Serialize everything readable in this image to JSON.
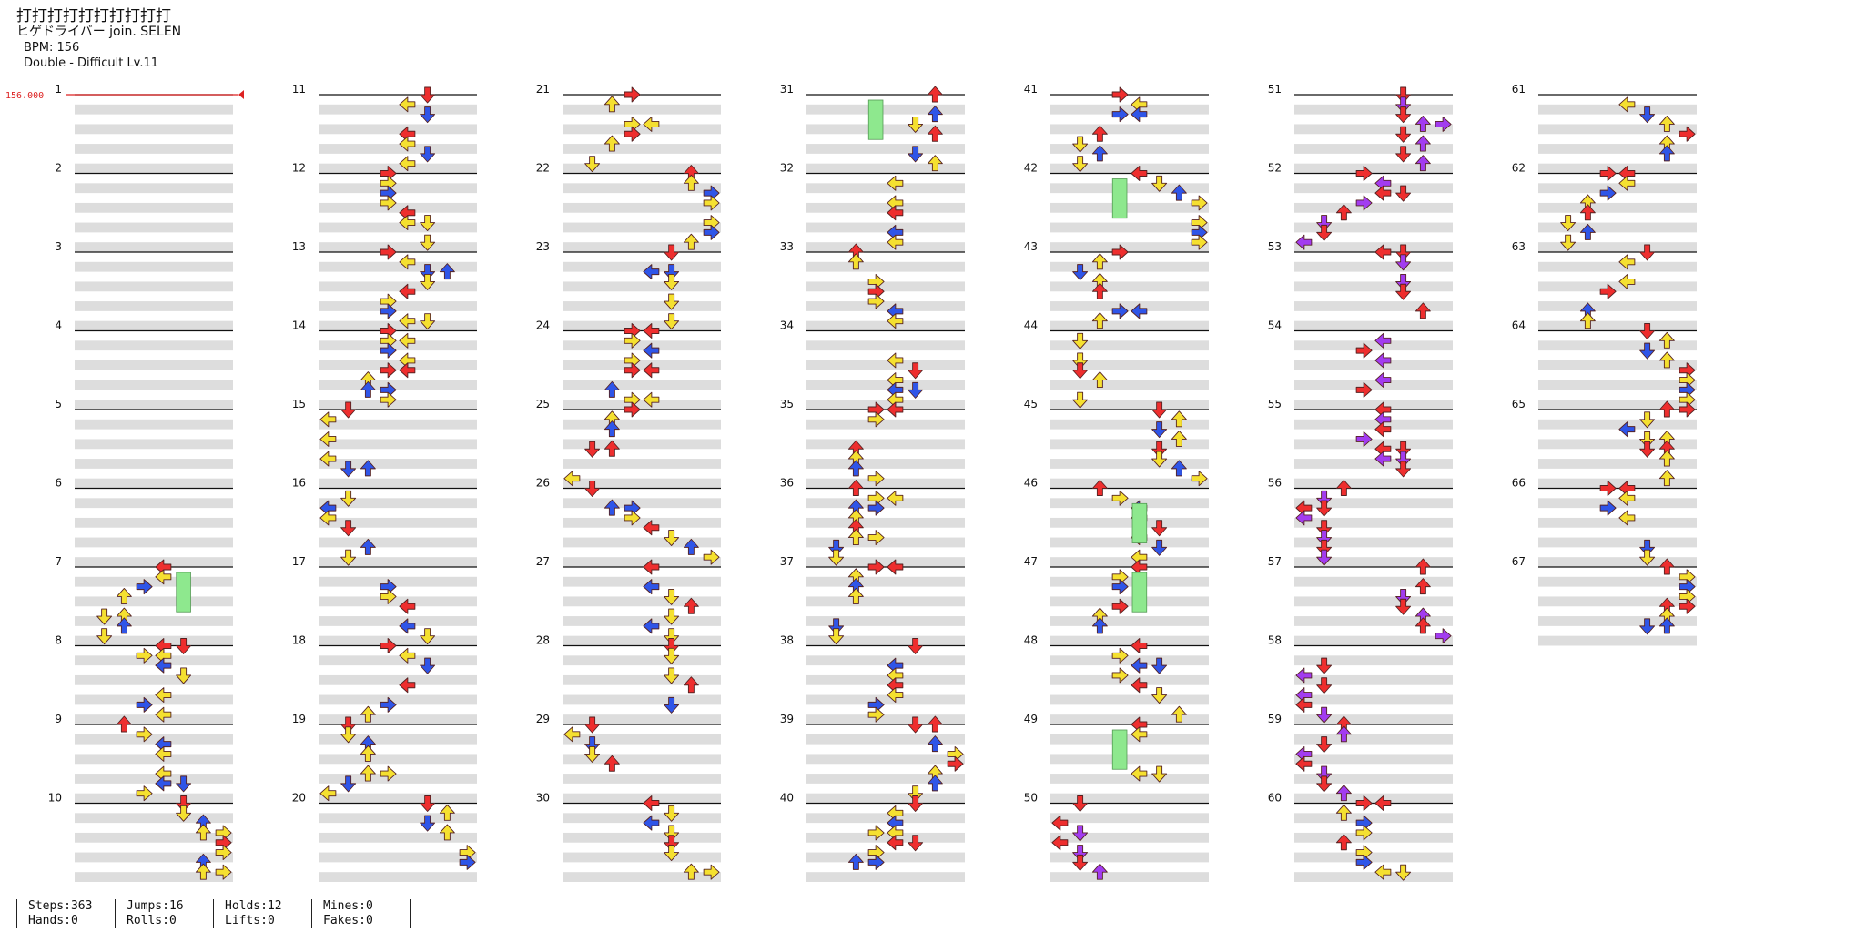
{
  "song": {
    "title": "打打打打打打打打打打",
    "artist": "ヒゲドライバー join. SELEN",
    "bpm_label": "BPM: 156",
    "difficulty_label": "Double - Difficult Lv.11"
  },
  "bpm_marker": "156.000",
  "measures": [
    "1",
    "2",
    "3",
    "4",
    "5",
    "6",
    "7",
    "8",
    "9",
    "10",
    "11",
    "12",
    "13",
    "14",
    "15",
    "16",
    "17",
    "18",
    "19",
    "20",
    "21",
    "22",
    "23",
    "24",
    "25",
    "26",
    "27",
    "28",
    "29",
    "30",
    "31",
    "32",
    "33",
    "34",
    "35",
    "36",
    "37",
    "38",
    "39",
    "40",
    "41",
    "42",
    "43",
    "44",
    "45",
    "46",
    "47",
    "48",
    "49",
    "50",
    "51",
    "52",
    "53",
    "54",
    "55",
    "56",
    "57",
    "58",
    "59",
    "60",
    "61",
    "62",
    "63",
    "64",
    "65",
    "66",
    "67"
  ],
  "stats": [
    {
      "a": "Steps:363",
      "b": "Hands:0"
    },
    {
      "a": "Jumps:16",
      "b": "Rolls:0"
    },
    {
      "a": "Holds:12",
      "b": "Lifts:0"
    },
    {
      "a": "Mines:0",
      "b": "Fakes:0"
    }
  ],
  "colors": {
    "quarter": "#ee2e2e",
    "eighth": "#2f55e8",
    "sixteenth": "#f5e030",
    "twelfth": "#a23cf0",
    "hold": "#8ee88e",
    "band": "#dddddd",
    "bpm": "#dd2222"
  }
}
